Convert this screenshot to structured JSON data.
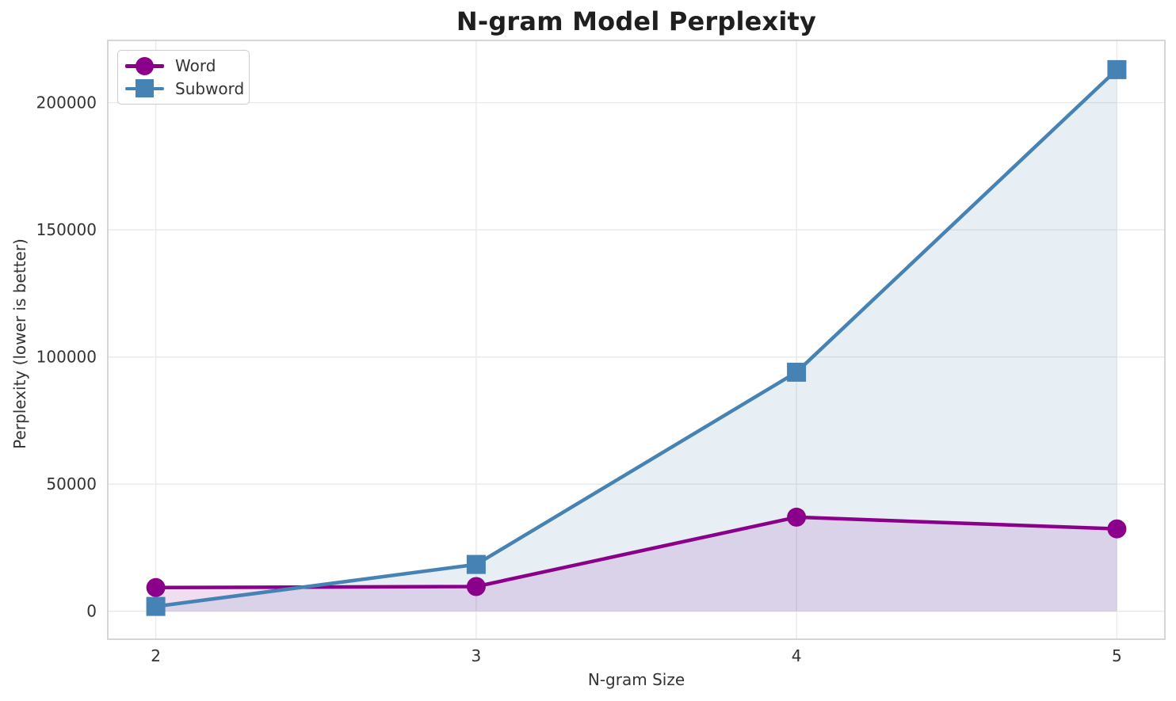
{
  "figure": {
    "background": "#ffffff",
    "grid_color": "#e9e9e9",
    "spine_color": "#cccccc",
    "tick_text_color": "#333333",
    "title_color": "#1f1f1f"
  },
  "chart_data": {
    "type": "line",
    "title": "N-gram Model Perplexity",
    "xlabel": "N-gram Size",
    "ylabel": "Perplexity (lower is better)",
    "x": [
      2,
      3,
      4,
      5
    ],
    "series": [
      {
        "name": "Word",
        "marker": "circle",
        "color": "#8B008B",
        "values": [
          9300,
          9700,
          37000,
          32400
        ]
      },
      {
        "name": "Subword",
        "marker": "square",
        "color": "#4682B4",
        "values": [
          1900,
          18400,
          94000,
          213000
        ]
      }
    ],
    "xticks": [
      2,
      3,
      4,
      5
    ],
    "yticks": [
      0,
      50000,
      100000,
      150000,
      200000
    ],
    "xlim": [
      1.85,
      5.15
    ],
    "ylim": [
      -11000,
      224500
    ],
    "grid": true,
    "legend_position": "upper left",
    "area_fill": true,
    "fill_opacity": 0.13
  }
}
